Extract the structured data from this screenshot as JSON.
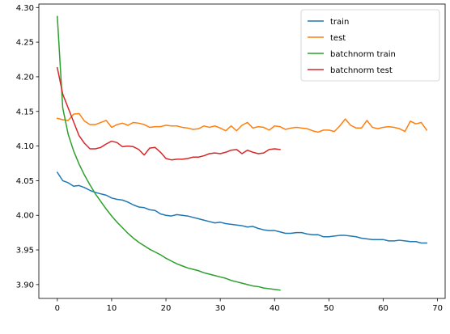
{
  "chart_data": {
    "type": "line",
    "title": "",
    "xlabel": "",
    "ylabel": "",
    "xlim": [
      -3.4,
      71.4
    ],
    "ylim": [
      3.88,
      4.305
    ],
    "xticks": [
      0,
      10,
      20,
      30,
      40,
      50,
      60,
      70
    ],
    "yticks": [
      3.9,
      3.95,
      4.0,
      4.05,
      4.1,
      4.15,
      4.2,
      4.25,
      4.3
    ],
    "ytick_labels": [
      "3.90",
      "3.95",
      "4.00",
      "4.05",
      "4.10",
      "4.15",
      "4.20",
      "4.25",
      "4.30"
    ],
    "grid": false,
    "legend": "top-right",
    "series": [
      {
        "name": "train",
        "color": "#1f77b4",
        "values": [
          4.062,
          4.05,
          4.047,
          4.042,
          4.043,
          4.04,
          4.036,
          4.033,
          4.031,
          4.029,
          4.025,
          4.023,
          4.022,
          4.019,
          4.015,
          4.012,
          4.011,
          4.008,
          4.007,
          4.002,
          4.0,
          3.999,
          4.001,
          4.0,
          3.999,
          3.997,
          3.995,
          3.993,
          3.991,
          3.989,
          3.99,
          3.988,
          3.987,
          3.986,
          3.985,
          3.983,
          3.984,
          3.981,
          3.979,
          3.978,
          3.978,
          3.976,
          3.974,
          3.974,
          3.975,
          3.975,
          3.973,
          3.972,
          3.972,
          3.969,
          3.969,
          3.97,
          3.971,
          3.971,
          3.97,
          3.969,
          3.967,
          3.966,
          3.965,
          3.965,
          3.965,
          3.963,
          3.963,
          3.964,
          3.963,
          3.962,
          3.962,
          3.96,
          3.96
        ]
      },
      {
        "name": "test",
        "color": "#ff7f0e",
        "values": [
          4.14,
          4.138,
          4.137,
          4.146,
          4.147,
          4.136,
          4.131,
          4.131,
          4.134,
          4.137,
          4.127,
          4.131,
          4.133,
          4.13,
          4.134,
          4.133,
          4.131,
          4.127,
          4.128,
          4.128,
          4.13,
          4.129,
          4.129,
          4.127,
          4.126,
          4.124,
          4.125,
          4.129,
          4.127,
          4.129,
          4.126,
          4.122,
          4.129,
          4.122,
          4.13,
          4.134,
          4.126,
          4.128,
          4.127,
          4.123,
          4.129,
          4.128,
          4.124,
          4.126,
          4.127,
          4.126,
          4.125,
          4.122,
          4.12,
          4.123,
          4.123,
          4.121,
          4.129,
          4.139,
          4.13,
          4.126,
          4.126,
          4.137,
          4.127,
          4.125,
          4.127,
          4.128,
          4.127,
          4.125,
          4.121,
          4.136,
          4.132,
          4.134,
          4.123
        ]
      },
      {
        "name": "batchnorm train",
        "color": "#2ca02c",
        "values": [
          4.287,
          4.155,
          4.117,
          4.093,
          4.074,
          4.058,
          4.044,
          4.031,
          4.02,
          4.009,
          3.999,
          3.99,
          3.982,
          3.974,
          3.967,
          3.961,
          3.956,
          3.951,
          3.947,
          3.943,
          3.938,
          3.934,
          3.93,
          3.927,
          3.924,
          3.922,
          3.92,
          3.917,
          3.915,
          3.913,
          3.911,
          3.909,
          3.906,
          3.904,
          3.902,
          3.9,
          3.898,
          3.897,
          3.895,
          3.894,
          3.893,
          3.892
        ]
      },
      {
        "name": "batchnorm test",
        "color": "#d62728",
        "values": [
          4.213,
          4.175,
          4.155,
          4.135,
          4.115,
          4.104,
          4.096,
          4.096,
          4.098,
          4.103,
          4.107,
          4.105,
          4.099,
          4.1,
          4.099,
          4.095,
          4.087,
          4.097,
          4.098,
          4.091,
          4.082,
          4.08,
          4.081,
          4.081,
          4.082,
          4.084,
          4.084,
          4.086,
          4.089,
          4.09,
          4.089,
          4.091,
          4.094,
          4.095,
          4.089,
          4.094,
          4.091,
          4.089,
          4.09,
          4.095,
          4.096,
          4.095
        ]
      }
    ]
  }
}
